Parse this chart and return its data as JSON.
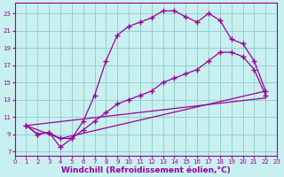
{
  "bg_color": "#c8f0f0",
  "line_color": "#990099",
  "grid_color": "#99cccc",
  "xlabel": "Windchill (Refroidissement éolien,°C)",
  "xlabel_fontsize": 6.5,
  "ylabel_ticks": [
    7,
    9,
    11,
    13,
    15,
    17,
    19,
    21,
    23
  ],
  "xlabel_ticks": [
    0,
    1,
    2,
    3,
    4,
    5,
    6,
    7,
    8,
    9,
    10,
    11,
    12,
    13,
    14,
    15,
    16,
    17,
    18,
    19,
    20,
    21,
    22,
    23
  ],
  "xlim": [
    0,
    23
  ],
  "ylim": [
    6.5,
    24.2
  ],
  "line1_x": [
    1,
    2,
    3,
    4,
    5,
    6,
    7,
    8,
    9,
    10,
    11,
    12,
    13,
    14,
    15,
    16,
    17,
    18,
    19,
    20,
    21,
    22
  ],
  "line1_y": [
    10.0,
    9.0,
    9.2,
    7.5,
    8.5,
    10.5,
    13.5,
    17.5,
    20.5,
    21.5,
    22.0,
    22.5,
    23.3,
    23.3,
    22.6,
    22.0,
    23.0,
    22.2,
    20.0,
    19.5,
    17.5,
    14.0
  ],
  "line2_x": [
    1,
    2,
    3,
    4,
    5,
    6,
    7,
    8,
    9,
    10,
    11,
    12,
    13,
    14,
    15,
    16,
    17,
    18,
    19,
    20,
    21,
    22
  ],
  "line2_y": [
    10.0,
    9.0,
    9.2,
    8.5,
    8.5,
    9.5,
    10.5,
    11.5,
    12.5,
    13.0,
    13.5,
    14.0,
    15.0,
    15.5,
    16.0,
    16.5,
    17.5,
    18.5,
    18.5,
    18.0,
    16.5,
    13.5
  ],
  "line3_x": [
    1,
    4,
    22
  ],
  "line3_y": [
    10.0,
    8.5,
    14.0
  ]
}
